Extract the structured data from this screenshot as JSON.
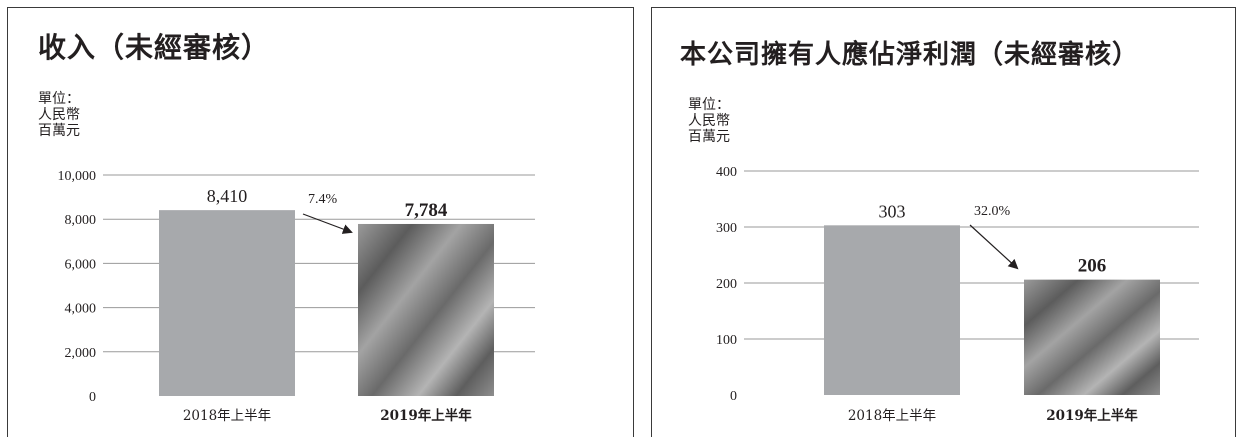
{
  "chart_data": [
    {
      "type": "bar",
      "title": "收入（未經審核）",
      "unit_lines": [
        "單位：",
        "人民幣",
        "百萬元"
      ],
      "categories": [
        "2018年上半年",
        "2019年上半年"
      ],
      "values": [
        8410,
        7784
      ],
      "value_labels": [
        "8,410",
        "7,784"
      ],
      "ylim": [
        0,
        10000
      ],
      "yticks": [
        0,
        2000,
        4000,
        6000,
        8000,
        10000
      ],
      "ytick_labels": [
        "0",
        "2,000",
        "4,000",
        "6,000",
        "8,000",
        "10,000"
      ],
      "change_label": "7.4%",
      "grid": true,
      "bar_colors": [
        "#a7a9ac",
        "#7b7b7b"
      ]
    },
    {
      "type": "bar",
      "title": "本公司擁有人應佔淨利潤（未經審核）",
      "unit_lines": [
        "單位：",
        "人民幣",
        "百萬元"
      ],
      "categories": [
        "2018年上半年",
        "2019年上半年"
      ],
      "values": [
        303,
        206
      ],
      "value_labels": [
        "303",
        "206"
      ],
      "ylim": [
        0,
        400
      ],
      "yticks": [
        0,
        100,
        200,
        300,
        400
      ],
      "ytick_labels": [
        "0",
        "100",
        "200",
        "300",
        "400"
      ],
      "change_label": "32.0%",
      "grid": true,
      "bar_colors": [
        "#a7a9ac",
        "#7b7b7b"
      ]
    }
  ]
}
